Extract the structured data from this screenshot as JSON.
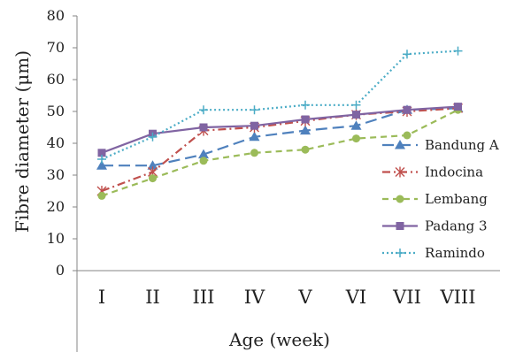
{
  "chart_data": {
    "type": "line",
    "title": "",
    "xlabel": "Age (week)",
    "ylabel": "Fibre diameter (μm)",
    "categories": [
      "I",
      "II",
      "III",
      "IV",
      "V",
      "VI",
      "VII",
      "VIII"
    ],
    "ylim": [
      0,
      80
    ],
    "yticks": [
      "0",
      "10",
      "20",
      "30",
      "40",
      "50",
      "60",
      "70",
      "80"
    ],
    "grid": false,
    "legend_position": "right",
    "series": [
      {
        "name": "Bandung A",
        "color": "#4f81bd",
        "marker": "triangle",
        "dash": "long-dash",
        "values": [
          33,
          33,
          36.5,
          42,
          44,
          45.5,
          50.5,
          51
        ]
      },
      {
        "name": "Indocina",
        "color": "#c0504d",
        "marker": "asterisk",
        "dash": "dash-dot",
        "values": [
          25,
          31,
          44,
          45,
          47,
          49,
          50,
          51
        ]
      },
      {
        "name": "Lembang",
        "color": "#9bbb59",
        "marker": "circle",
        "dash": "dash",
        "values": [
          23.5,
          29,
          34.5,
          37,
          38,
          41.5,
          42.5,
          50.5
        ]
      },
      {
        "name": "Padang 3",
        "color": "#8064a2",
        "marker": "square",
        "dash": "solid",
        "values": [
          37,
          43,
          45,
          45.5,
          47.5,
          49,
          50.5,
          51.5
        ]
      },
      {
        "name": "Ramindo",
        "color": "#4bacc6",
        "marker": "plus",
        "dash": "dot",
        "values": [
          35,
          42,
          50.5,
          50.5,
          52,
          52,
          68,
          69
        ]
      }
    ]
  }
}
